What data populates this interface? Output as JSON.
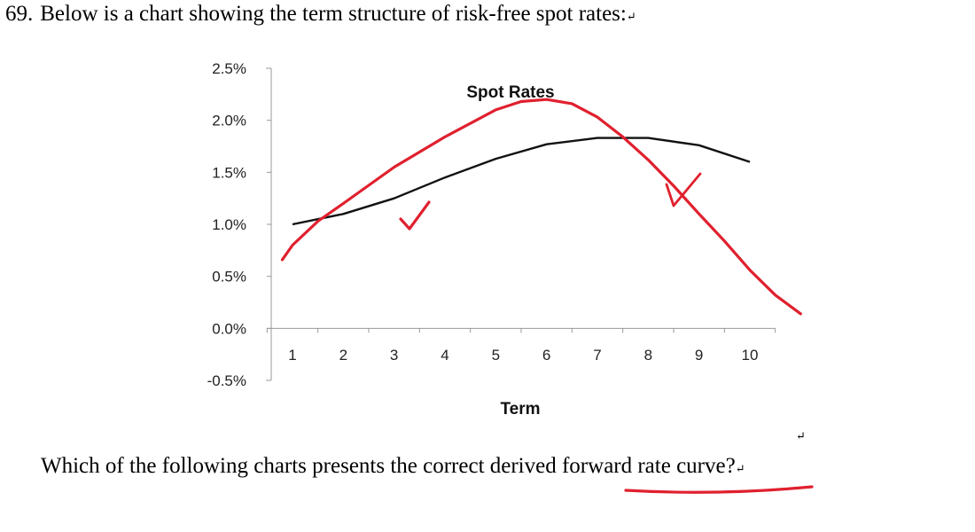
{
  "question": {
    "number": "69.",
    "text": "Below is a chart showing the term structure of risk-free spot rates:",
    "mark": "↵"
  },
  "chart_data": {
    "type": "line",
    "title": "Spot Rates",
    "xlabel": "Term",
    "ylabel": "",
    "x": [
      1,
      2,
      3,
      4,
      5,
      6,
      7,
      8,
      9,
      10
    ],
    "xticks": [
      "1",
      "2",
      "3",
      "4",
      "5",
      "6",
      "7",
      "8",
      "9",
      "10"
    ],
    "yticks": [
      "2.5%",
      "2.0%",
      "1.5%",
      "1.0%",
      "0.5%",
      "0.0%",
      "-0.5%"
    ],
    "ylim": [
      -0.5,
      2.5
    ],
    "grid": false,
    "series": [
      {
        "values": [
          1.0,
          1.1,
          1.25,
          1.45,
          1.63,
          1.77,
          1.83,
          1.83,
          1.76,
          1.6
        ],
        "color": "#111111"
      }
    ],
    "annotations": {
      "color": "#e0202e",
      "checkmark": "✓",
      "hand_drawn_curve": [
        [
          0.8,
          0.66
        ],
        [
          1.0,
          0.8
        ],
        [
          1.5,
          1.03
        ],
        [
          2.0,
          1.2
        ],
        [
          3.0,
          1.55
        ],
        [
          4.0,
          1.84
        ],
        [
          5.0,
          2.1
        ],
        [
          5.5,
          2.18
        ],
        [
          6.0,
          2.2
        ],
        [
          6.5,
          2.16
        ],
        [
          7.0,
          2.03
        ],
        [
          7.5,
          1.84
        ],
        [
          8.0,
          1.62
        ],
        [
          8.5,
          1.37
        ],
        [
          9.0,
          1.1
        ],
        [
          9.5,
          0.84
        ],
        [
          10.0,
          0.56
        ],
        [
          10.5,
          0.32
        ],
        [
          11.0,
          0.14
        ]
      ]
    }
  },
  "question2": {
    "text_before": "Which of the following charts presents the correct derived ",
    "text_underlined": "forward rate curve?",
    "mark": "↵"
  },
  "return_mark": "↵"
}
